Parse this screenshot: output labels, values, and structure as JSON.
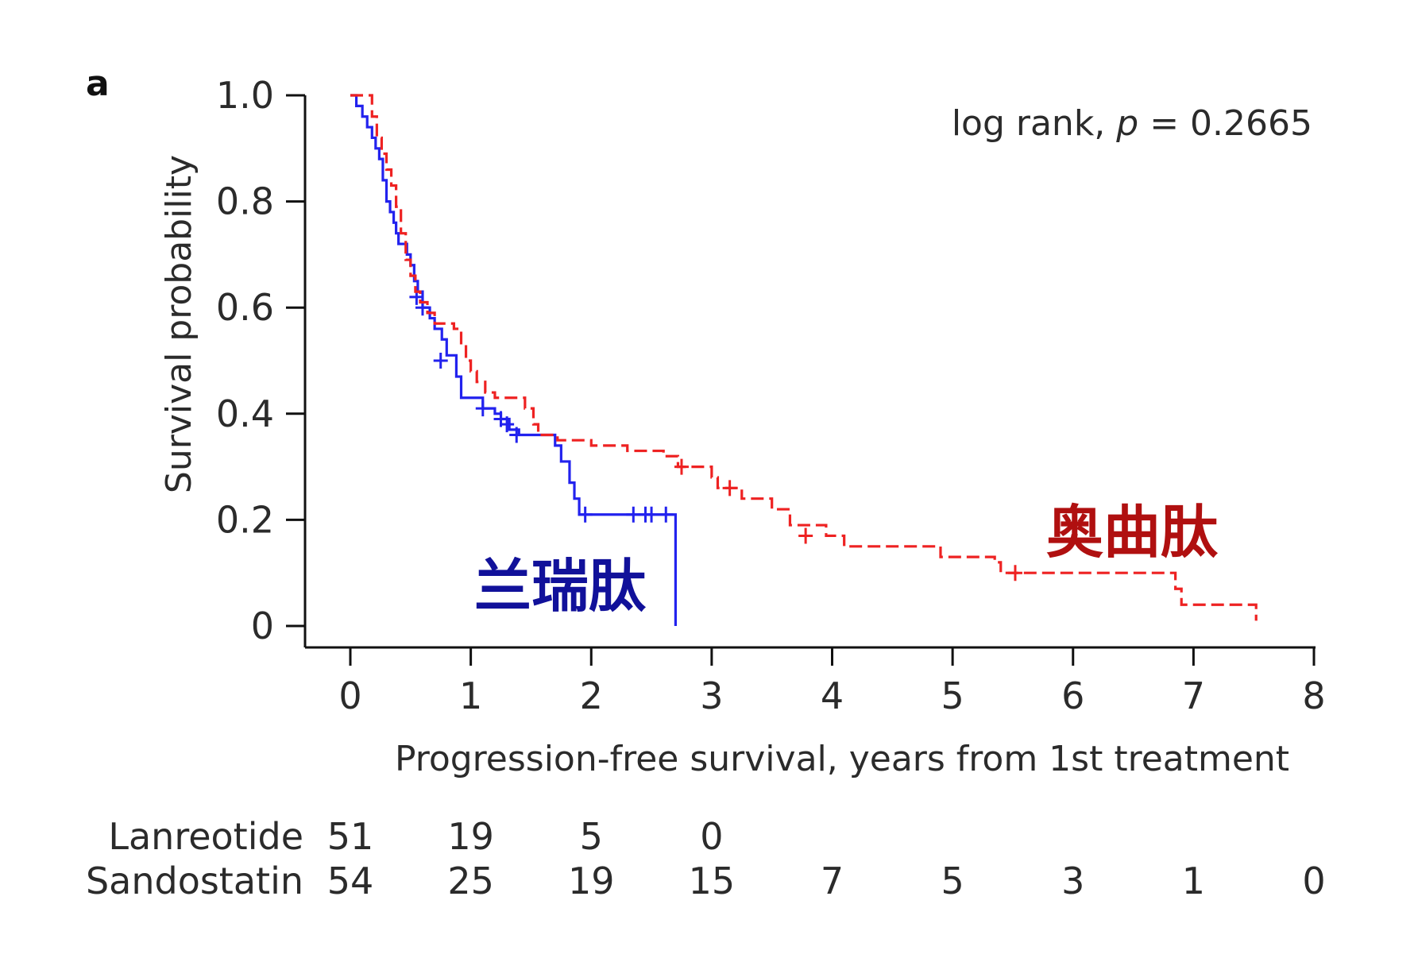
{
  "chart_data": {
    "type": "line",
    "subtype": "kaplan-meier step curves",
    "panel_label": "a",
    "xlabel": "Progression-free survival, years from 1st treatment",
    "ylabel": "Survival probability",
    "xlim": [
      0,
      8
    ],
    "ylim": [
      0,
      1
    ],
    "x_ticks": [
      "0",
      "1",
      "2",
      "3",
      "4",
      "5",
      "6",
      "7",
      "8"
    ],
    "y_ticks": [
      "0",
      "0.2",
      "0.4",
      "0.6",
      "0.8",
      "1.0"
    ],
    "annotation": {
      "prefix": "log rank, ",
      "p_symbol": "p",
      "suffix": " = 0.2665"
    },
    "grid": false,
    "series": [
      {
        "name": "Lanreotide",
        "label": "兰瑞肽",
        "color": "#2222ee",
        "label_color": "#11119a",
        "line_style": "solid",
        "steps": [
          [
            0.0,
            1.0
          ],
          [
            0.05,
            0.98
          ],
          [
            0.1,
            0.96
          ],
          [
            0.14,
            0.94
          ],
          [
            0.18,
            0.92
          ],
          [
            0.21,
            0.9
          ],
          [
            0.24,
            0.88
          ],
          [
            0.27,
            0.84
          ],
          [
            0.3,
            0.8
          ],
          [
            0.33,
            0.78
          ],
          [
            0.36,
            0.76
          ],
          [
            0.38,
            0.74
          ],
          [
            0.4,
            0.72
          ],
          [
            0.44,
            0.72
          ],
          [
            0.47,
            0.7
          ],
          [
            0.5,
            0.68
          ],
          [
            0.53,
            0.65
          ],
          [
            0.56,
            0.63
          ],
          [
            0.6,
            0.6
          ],
          [
            0.66,
            0.58
          ],
          [
            0.7,
            0.56
          ],
          [
            0.76,
            0.54
          ],
          [
            0.8,
            0.51
          ],
          [
            0.87,
            0.51
          ],
          [
            0.88,
            0.47
          ],
          [
            0.92,
            0.43
          ],
          [
            1.08,
            0.43
          ],
          [
            1.1,
            0.41
          ],
          [
            1.2,
            0.4
          ],
          [
            1.25,
            0.39
          ],
          [
            1.32,
            0.37
          ],
          [
            1.4,
            0.36
          ],
          [
            1.65,
            0.36
          ],
          [
            1.7,
            0.34
          ],
          [
            1.75,
            0.31
          ],
          [
            1.82,
            0.27
          ],
          [
            1.86,
            0.24
          ],
          [
            1.9,
            0.21
          ],
          [
            2.7,
            0.21
          ],
          [
            2.7,
            0.0
          ]
        ],
        "censored": [
          [
            0.55,
            0.62
          ],
          [
            0.6,
            0.6
          ],
          [
            0.75,
            0.5
          ],
          [
            1.1,
            0.41
          ],
          [
            1.25,
            0.39
          ],
          [
            1.3,
            0.38
          ],
          [
            1.38,
            0.36
          ],
          [
            1.95,
            0.21
          ],
          [
            2.35,
            0.21
          ],
          [
            2.45,
            0.21
          ],
          [
            2.5,
            0.21
          ],
          [
            2.62,
            0.21
          ]
        ],
        "at_risk": [
          "51",
          "19",
          "5",
          "0"
        ]
      },
      {
        "name": "Sandostatin",
        "label": "奥曲肽",
        "color": "#ee2222",
        "label_color": "#b01010",
        "line_style": "dashed",
        "steps": [
          [
            0.0,
            1.0
          ],
          [
            0.18,
            0.96
          ],
          [
            0.22,
            0.92
          ],
          [
            0.26,
            0.89
          ],
          [
            0.3,
            0.86
          ],
          [
            0.34,
            0.83
          ],
          [
            0.38,
            0.79
          ],
          [
            0.42,
            0.74
          ],
          [
            0.46,
            0.69
          ],
          [
            0.5,
            0.66
          ],
          [
            0.54,
            0.63
          ],
          [
            0.58,
            0.61
          ],
          [
            0.64,
            0.59
          ],
          [
            0.7,
            0.57
          ],
          [
            0.86,
            0.56
          ],
          [
            0.92,
            0.53
          ],
          [
            0.96,
            0.5
          ],
          [
            1.0,
            0.48
          ],
          [
            1.05,
            0.46
          ],
          [
            1.12,
            0.44
          ],
          [
            1.2,
            0.43
          ],
          [
            1.45,
            0.41
          ],
          [
            1.52,
            0.38
          ],
          [
            1.56,
            0.36
          ],
          [
            1.72,
            0.35
          ],
          [
            2.0,
            0.34
          ],
          [
            2.3,
            0.33
          ],
          [
            2.6,
            0.32
          ],
          [
            2.72,
            0.3
          ],
          [
            3.0,
            0.28
          ],
          [
            3.05,
            0.26
          ],
          [
            3.25,
            0.24
          ],
          [
            3.5,
            0.22
          ],
          [
            3.65,
            0.19
          ],
          [
            3.95,
            0.17
          ],
          [
            4.1,
            0.15
          ],
          [
            4.8,
            0.15
          ],
          [
            4.9,
            0.13
          ],
          [
            5.35,
            0.12
          ],
          [
            5.4,
            0.1
          ],
          [
            6.8,
            0.1
          ],
          [
            6.85,
            0.07
          ],
          [
            6.9,
            0.04
          ],
          [
            7.52,
            0.04
          ],
          [
            7.52,
            0.01
          ]
        ],
        "censored": [
          [
            2.75,
            0.3
          ],
          [
            3.15,
            0.26
          ],
          [
            3.78,
            0.17
          ],
          [
            5.52,
            0.1
          ]
        ],
        "at_risk": [
          "54",
          "25",
          "19",
          "15",
          "7",
          "5",
          "3",
          "1",
          "0"
        ]
      }
    ]
  }
}
